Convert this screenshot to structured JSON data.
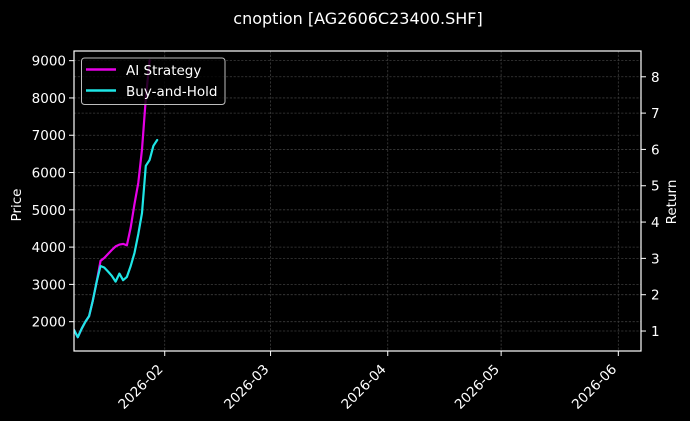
{
  "title": "cnoption [AG2606C23400.SHF]",
  "colors": {
    "background": "#000000",
    "axes": "#ffffff",
    "grid": "#3c3c3c",
    "text": "#ffffff",
    "ai_strategy": "#e600e6",
    "buy_and_hold": "#1ee6e6",
    "legend_border": "#bdbdbd"
  },
  "legend": {
    "entries": [
      {
        "label": "AI Strategy",
        "color": "#e600e6"
      },
      {
        "label": "Buy-and-Hold",
        "color": "#1ee6e6"
      }
    ]
  },
  "chart_data": {
    "type": "line",
    "title": "cnoption [AG2606C23400.SHF]",
    "xlabel": "",
    "ylabel": "Price",
    "ylabel_right": "Return",
    "xlim": [
      "2026-01-08",
      "2026-06-07"
    ],
    "ylim": [
      1214,
      9259
    ],
    "ylim_right": [
      0.45,
      8.71
    ],
    "grid": true,
    "legend_position": "upper left",
    "x_ticks": [
      {
        "date": "2026-02-01",
        "label": "2026-02"
      },
      {
        "date": "2026-03-01",
        "label": "2026-03"
      },
      {
        "date": "2026-04-01",
        "label": "2026-04"
      },
      {
        "date": "2026-05-01",
        "label": "2026-05"
      },
      {
        "date": "2026-06-01",
        "label": "2026-06"
      }
    ],
    "y_ticks": [
      2000,
      3000,
      4000,
      5000,
      6000,
      7000,
      8000,
      9000
    ],
    "y_ticks_right": [
      1,
      2,
      3,
      4,
      5,
      6,
      7,
      8
    ],
    "series": [
      {
        "name": "AI Strategy",
        "axis": "right",
        "color": "#e600e6",
        "x": [
          "2026-01-08",
          "2026-01-09",
          "2026-01-10",
          "2026-01-11",
          "2026-01-12",
          "2026-01-13",
          "2026-01-14",
          "2026-01-15",
          "2026-01-16",
          "2026-01-17",
          "2026-01-18",
          "2026-01-19",
          "2026-01-20",
          "2026-01-21",
          "2026-01-22",
          "2026-01-23",
          "2026-01-24",
          "2026-01-25",
          "2026-01-26",
          "2026-01-27",
          "2026-01-28"
        ],
        "y": [
          1.03,
          0.83,
          1.06,
          1.25,
          1.41,
          1.85,
          2.36,
          2.93,
          3.01,
          3.12,
          3.23,
          3.33,
          3.38,
          3.4,
          3.36,
          3.85,
          4.5,
          5.08,
          6.0,
          7.4,
          8.45
        ]
      },
      {
        "name": "Buy-and-Hold",
        "axis": "right",
        "color": "#1ee6e6",
        "x": [
          "2026-01-08",
          "2026-01-09",
          "2026-01-10",
          "2026-01-11",
          "2026-01-12",
          "2026-01-13",
          "2026-01-14",
          "2026-01-15",
          "2026-01-16",
          "2026-01-17",
          "2026-01-18",
          "2026-01-19",
          "2026-01-20",
          "2026-01-21",
          "2026-01-22",
          "2026-01-23",
          "2026-01-24",
          "2026-01-25",
          "2026-01-26",
          "2026-01-27",
          "2026-01-28",
          "2026-01-29",
          "2026-01-30"
        ],
        "y": [
          1.03,
          0.83,
          1.06,
          1.25,
          1.41,
          1.85,
          2.36,
          2.79,
          2.75,
          2.64,
          2.52,
          2.36,
          2.58,
          2.4,
          2.49,
          2.79,
          3.15,
          3.67,
          4.25,
          5.55,
          5.71,
          6.1,
          6.26
        ]
      }
    ]
  }
}
